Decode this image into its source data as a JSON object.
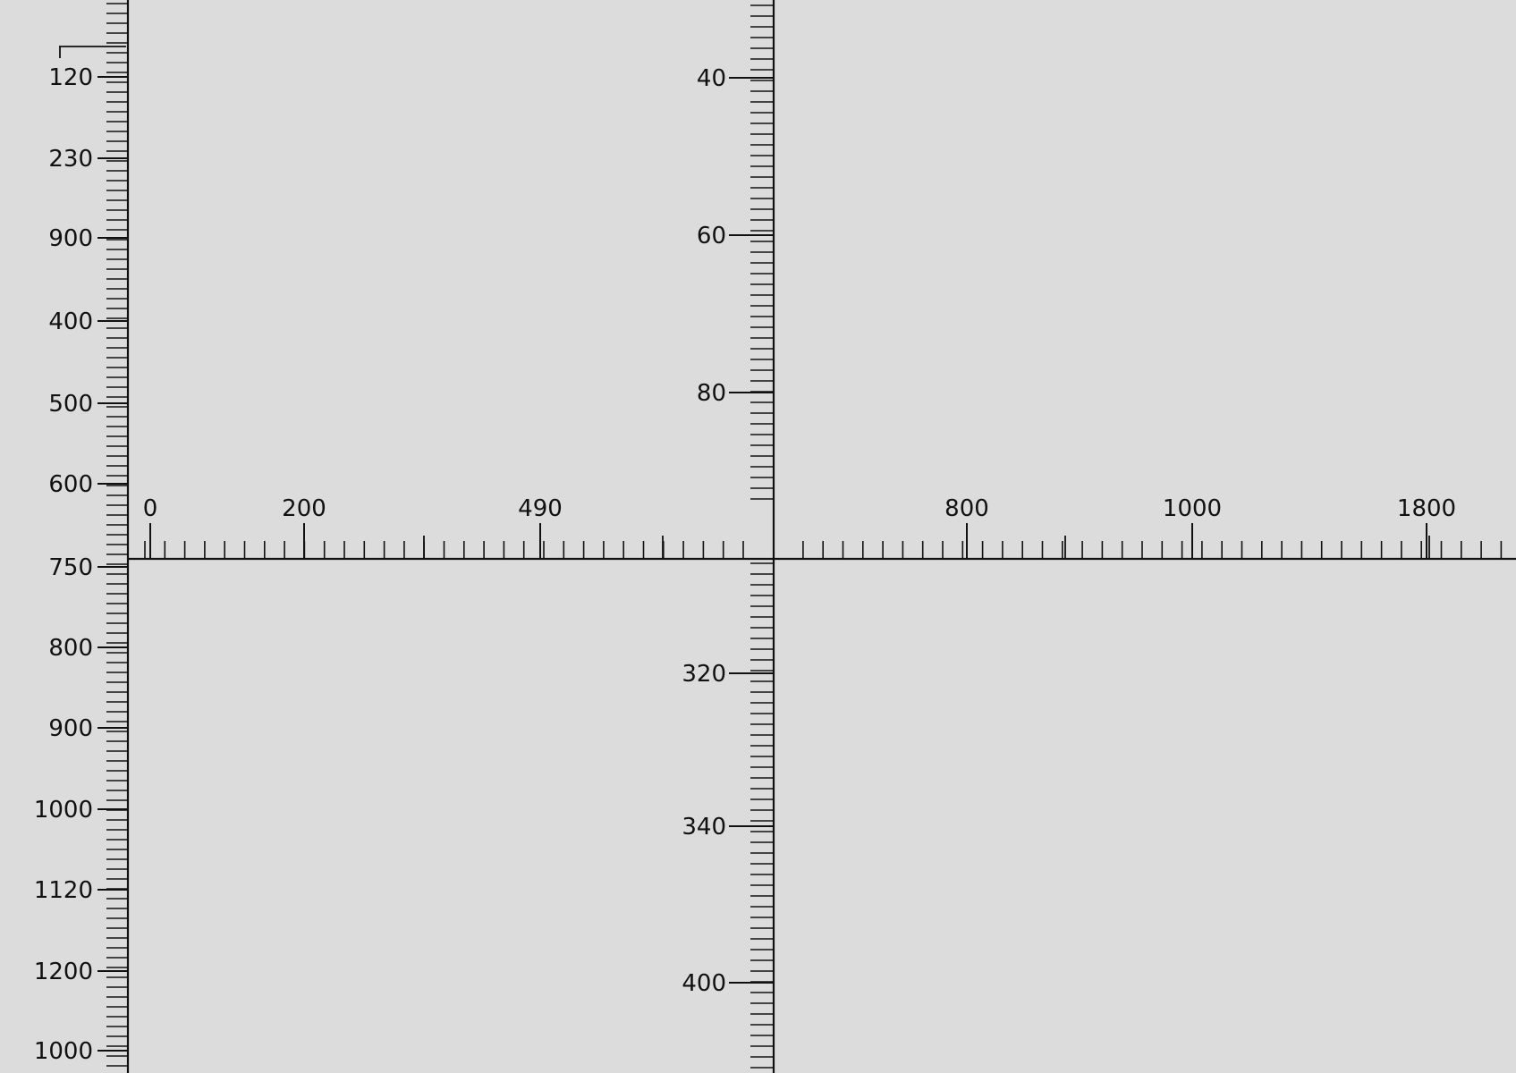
{
  "colors": {
    "background": "#dcdcdc",
    "ink": "#111111"
  },
  "left_ruler": {
    "labels": [
      "120",
      "230",
      "900",
      "400",
      "500",
      "600",
      "750",
      "800",
      "900",
      "1000",
      "1120",
      "1200",
      "1000"
    ]
  },
  "center_ruler_upper": {
    "labels": [
      "40",
      "60",
      "80"
    ]
  },
  "center_ruler_lower": {
    "labels": [
      "320",
      "340",
      "400"
    ]
  },
  "horizontal_ruler": {
    "labels": [
      "0",
      "200",
      "490",
      "800",
      "1000",
      "1800"
    ]
  }
}
